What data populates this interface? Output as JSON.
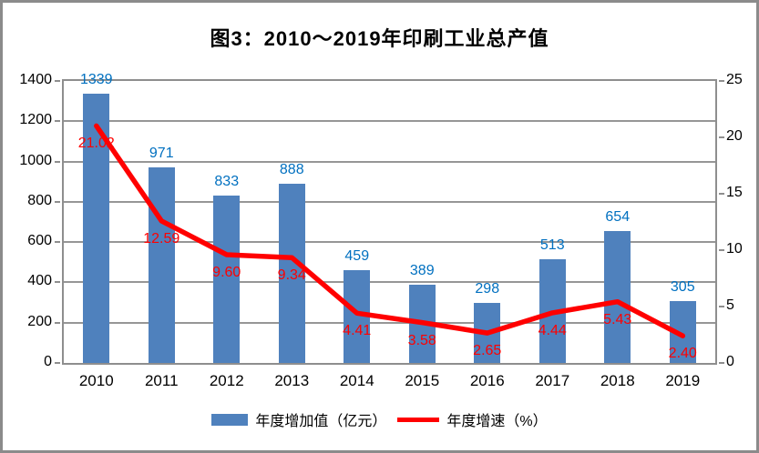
{
  "title": "图3：2010～2019年印刷工业总产值",
  "colors": {
    "background": "#FFFFFF",
    "frame_border": "#8B8B8B",
    "axis": "#8E8E8E",
    "grid": "#969696",
    "bar_fill": "#4F81BD",
    "bar_label": "#0070C0",
    "line": "#FF0000",
    "line_label": "#FF0000",
    "text": "#000000"
  },
  "chart_data": {
    "type": "bar",
    "subtype": "bar+line combo, dual axis",
    "title": "图3：2010～2019年印刷工业总产值",
    "categories": [
      "2010",
      "2011",
      "2012",
      "2013",
      "2014",
      "2015",
      "2016",
      "2017",
      "2018",
      "2019"
    ],
    "series": [
      {
        "name": "年度增加值（亿元）",
        "type": "bar",
        "axis": "left",
        "color": "#4F81BD",
        "label_color": "#0070C0",
        "values": [
          1339,
          971,
          833,
          888,
          459,
          389,
          298,
          513,
          654,
          305
        ],
        "value_labels": [
          "1339",
          "971",
          "833",
          "888",
          "459",
          "389",
          "298",
          "513",
          "654",
          "305"
        ]
      },
      {
        "name": "年度增速（%）",
        "type": "line",
        "axis": "right",
        "color": "#FF0000",
        "label_color": "#FF0000",
        "values": [
          21.02,
          12.59,
          9.6,
          9.34,
          4.41,
          3.58,
          2.65,
          4.44,
          5.43,
          2.4
        ],
        "value_labels": [
          "21.02",
          "12.59",
          "9.60",
          "9.34",
          "4.41",
          "3.58",
          "2.65",
          "4.44",
          "5.43",
          "2.40"
        ]
      }
    ],
    "left_axis": {
      "min": 0,
      "max": 1400,
      "step": 200
    },
    "right_axis": {
      "min": 0,
      "max": 25,
      "step": 5
    },
    "grid": true,
    "legend_position": "bottom",
    "xlabel": "",
    "ylabel_left": "",
    "ylabel_right": ""
  }
}
